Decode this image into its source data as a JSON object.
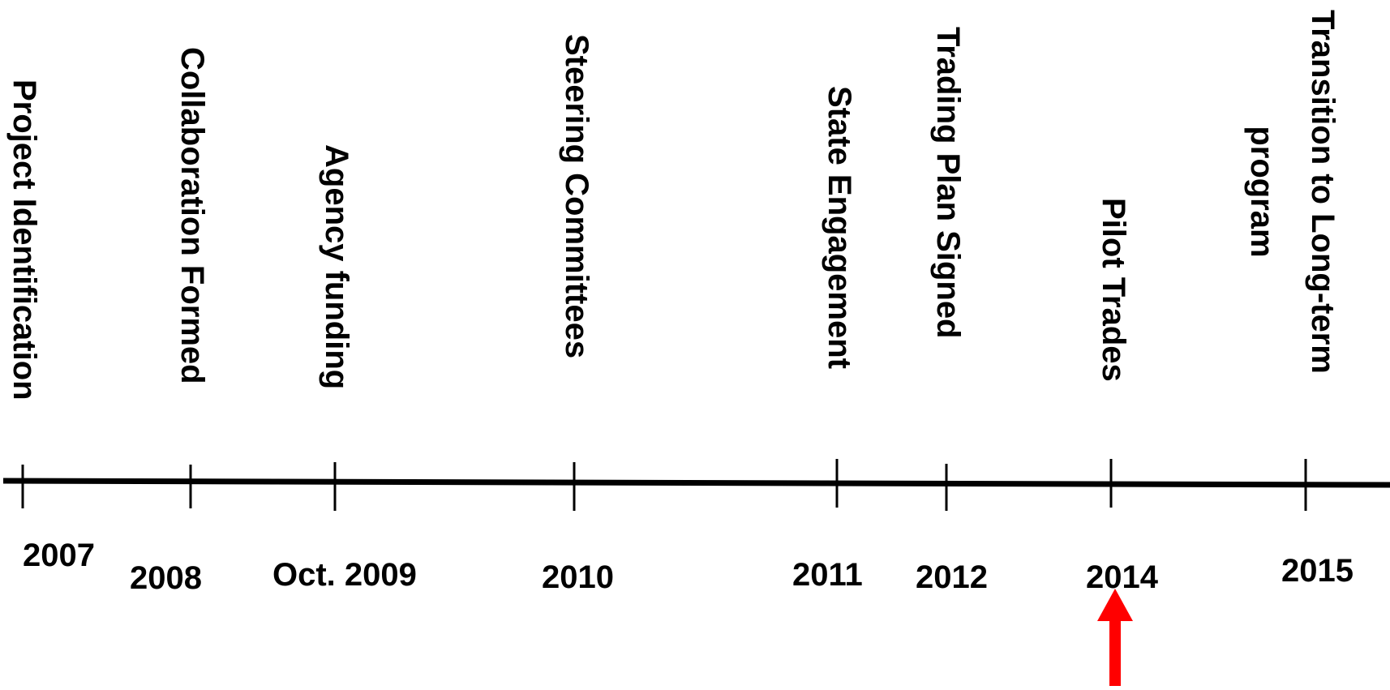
{
  "events": [
    {
      "label_lines": [
        "Project Identification"
      ],
      "year": "2007"
    },
    {
      "label_lines": [
        "Collaboration Formed"
      ],
      "year": "2008"
    },
    {
      "label_lines": [
        "Agency funding"
      ],
      "year": "Oct. 2009"
    },
    {
      "label_lines": [
        "Steering Committees"
      ],
      "year": "2010"
    },
    {
      "label_lines": [
        "State Engagement"
      ],
      "year": "2011"
    },
    {
      "label_lines": [
        "Trading Plan Signed"
      ],
      "year": "2012"
    },
    {
      "label_lines": [
        "Pilot Trades"
      ],
      "year": "2014"
    },
    {
      "label_lines": [
        "Transition to Long-term",
        "program"
      ],
      "year": "2015"
    }
  ],
  "current_marker": {
    "event_index": 6,
    "color": "#ff0000"
  },
  "colors": {
    "line": "#000000",
    "text": "#000000",
    "background": "#ffffff"
  }
}
